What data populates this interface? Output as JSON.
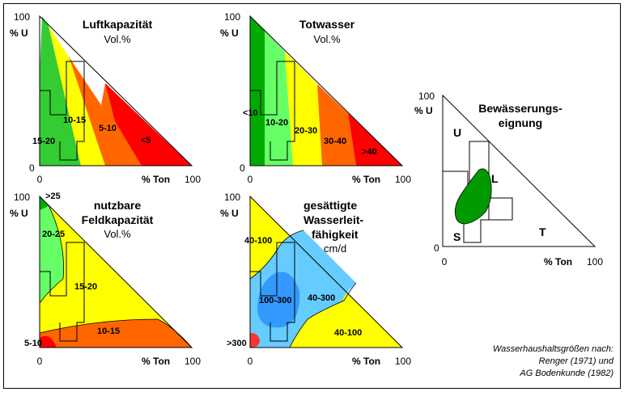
{
  "panels": {
    "luftkapazitaet": {
      "title": "Luftkapazität",
      "unit": "Vol.%",
      "labels": [
        "15-20",
        "10-15",
        "5-10",
        "<5"
      ],
      "colors": [
        "#33cc33",
        "#ffff00",
        "#ff6600",
        "#ff0000"
      ]
    },
    "totwasser": {
      "title": "Totwasser",
      "unit": "Vol.%",
      "labels": [
        "<10",
        "10-20",
        "20-30",
        "30-40",
        ">40"
      ],
      "colors": [
        "#00aa00",
        "#66ff66",
        "#ffff00",
        "#ff6600",
        "#ff0000"
      ]
    },
    "nutzbare_feldkapazitaet": {
      "title_line1": "nutzbare",
      "title_line2": "Feldkapazität",
      "unit": "Vol.%",
      "labels": [
        ">25",
        "20-25",
        "15-20",
        "10-15",
        "5-10"
      ],
      "colors": [
        "#00aa00",
        "#66ff66",
        "#ffff00",
        "#ff6600",
        "#ff0000"
      ]
    },
    "wasserleitfaehigkeit": {
      "title_line1": "gesättigte",
      "title_line2": "Wasserleit-",
      "title_line3": "fähigkeit",
      "unit": "cm/d",
      "labels": [
        "40-100",
        "100-300",
        "40-300",
        "40-100",
        ">300"
      ],
      "colors": [
        "#ffff00",
        "#66ccff",
        "#3399ff",
        "#ff3333"
      ]
    },
    "bewaesserung": {
      "title_line1": "Bewässerungs-",
      "title_line2": "eignung",
      "labels": [
        "U",
        "L",
        "S",
        "T"
      ],
      "colors": [
        "#009900"
      ]
    }
  },
  "axes": {
    "y_label": "% U",
    "x_label": "% Ton",
    "y_max": "100",
    "x_max": "100",
    "zero": "0"
  },
  "source": {
    "line1": "Wasserhaushaltsgrößen nach:",
    "line2": "Renger (1971) und",
    "line3": "AG Bodenkunde (1982)"
  }
}
